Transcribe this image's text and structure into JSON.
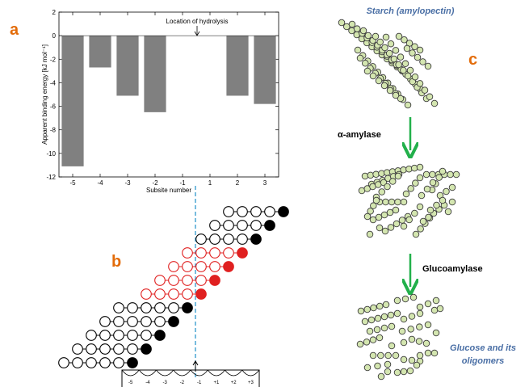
{
  "colors": {
    "panel_letter": "#e36c0a",
    "bar_fill": "#808080",
    "blue_text": "#4a6fa5",
    "arrow_green": "#22b04b",
    "glucose_fill": "#d4e6b0",
    "glucose_stroke": "#3c3c3c",
    "bound_red": "#e02020",
    "reducing_end_black": "#000000",
    "cleavage_line": "#1f8fc7"
  },
  "panel_a": {
    "letter": "a",
    "annotation": "Location of hydrolysis"
  },
  "panel_b": {
    "letter": "b",
    "subsite_labels": [
      "-5",
      "-4",
      "-3",
      "-2",
      "-1",
      "+1",
      "+2",
      "+3"
    ]
  },
  "panel_c": {
    "letter": "c",
    "top_label": "Starch (amylopectin)",
    "enzyme1": "α-amylase",
    "enzyme2": "Glucoamylase",
    "bottom_label_line1": "Glucose and its",
    "bottom_label_line2": "oligomers"
  },
  "chart_data": {
    "type": "bar",
    "categories": [
      "-5",
      "-4",
      "-3",
      "-2",
      "-1",
      "1",
      "2",
      "3"
    ],
    "values": [
      -11.1,
      -2.7,
      -5.1,
      -6.5,
      null,
      null,
      -5.1,
      -5.8
    ],
    "ylim": [
      -12,
      2
    ],
    "yticks": [
      "2",
      "0",
      "-2",
      "-4",
      "-6",
      "-8",
      "-10",
      "-12"
    ],
    "xlabel": "Subsite number",
    "ylabel": "Apparent binding energy [kJ mol⁻¹]",
    "grid": false
  }
}
